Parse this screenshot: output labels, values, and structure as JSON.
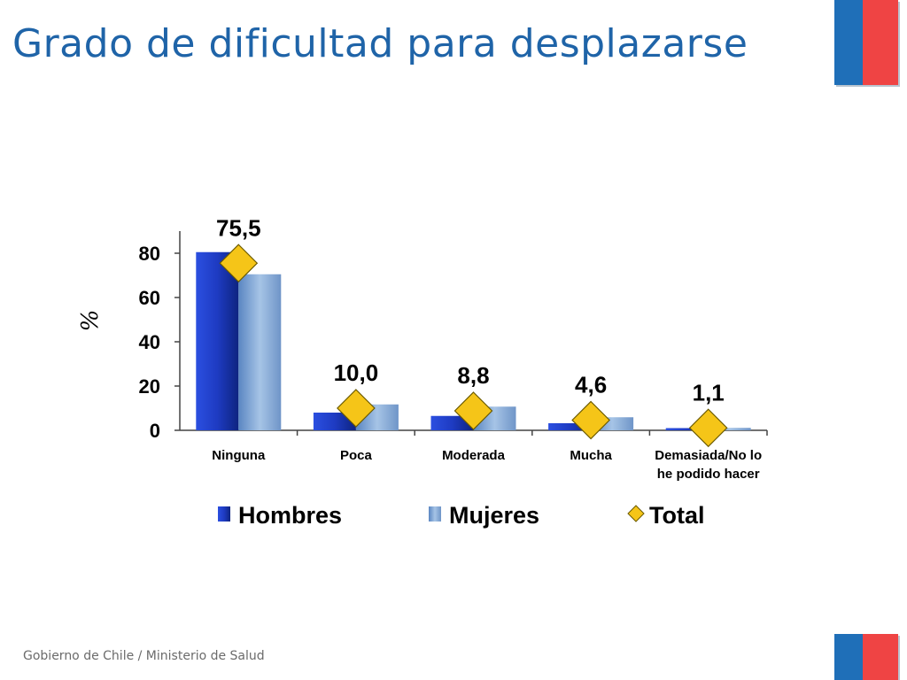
{
  "slide": {
    "title": "Grado de dificultad para desplazarse",
    "footer": "Gobierno de Chile / Ministerio de Salud"
  },
  "colors": {
    "title": "#1F64A8",
    "hombres": "#1F3FCF",
    "mujeres": "#7FA8D8",
    "total": "#F5C518",
    "flag_blue": "#1F6FB8",
    "flag_red": "#EF4444"
  },
  "chart_data": {
    "type": "bar",
    "title": "",
    "xlabel": "",
    "ylabel": "%",
    "ylim": [
      0,
      90
    ],
    "yticks": [
      0,
      20,
      40,
      60,
      80
    ],
    "categories": [
      "Ninguna",
      "Poca",
      "Moderada",
      "Mucha",
      "Demasiada/No lo he podido hacer"
    ],
    "series": [
      {
        "name": "Hombres",
        "kind": "bar",
        "values": [
          80.5,
          8.0,
          6.5,
          3.2,
          1.0
        ]
      },
      {
        "name": "Mujeres",
        "kind": "bar",
        "values": [
          70.5,
          11.7,
          10.7,
          5.9,
          1.1
        ]
      },
      {
        "name": "Total",
        "kind": "marker",
        "marker": "diamond",
        "values": [
          75.5,
          10.0,
          8.8,
          4.6,
          1.1
        ],
        "data_labels": [
          "75,5",
          "10,0",
          "8,8",
          "4,6",
          "1,1"
        ]
      }
    ],
    "legend": {
      "position": "bottom",
      "entries": [
        "Hombres",
        "Mujeres",
        "Total"
      ]
    },
    "grid": false
  }
}
